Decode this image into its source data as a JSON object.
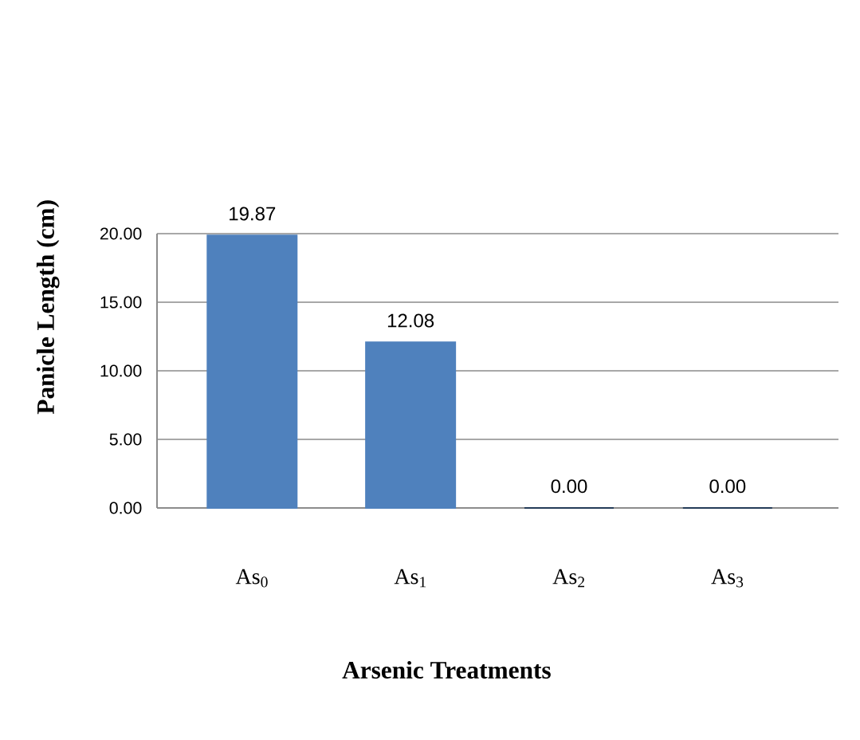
{
  "chart_data": {
    "type": "bar",
    "xlabel": "Arsenic Treatments",
    "ylabel": "Panicle Length (cm)",
    "categories": [
      "As$_{0}$",
      "As$_{1}$",
      "As$_{2}$",
      "As$_{3}$"
    ],
    "values": [
      19.87,
      12.08,
      0,
      0
    ],
    "value_labels": [
      "19.87",
      "12.08",
      "0.00",
      "0.00"
    ],
    "colors": [
      "#4f81bd",
      "#4f81bd",
      "#243b58",
      "#243b58"
    ],
    "ylim": [
      0,
      20
    ],
    "yticks": [
      {
        "value": 0,
        "label": "0.00"
      },
      {
        "value": 5,
        "label": "5.00"
      },
      {
        "value": 10,
        "label": "10.00"
      },
      {
        "value": 15,
        "label": "15.00"
      },
      {
        "value": 20,
        "label": "20.00"
      }
    ],
    "grid": "y"
  }
}
